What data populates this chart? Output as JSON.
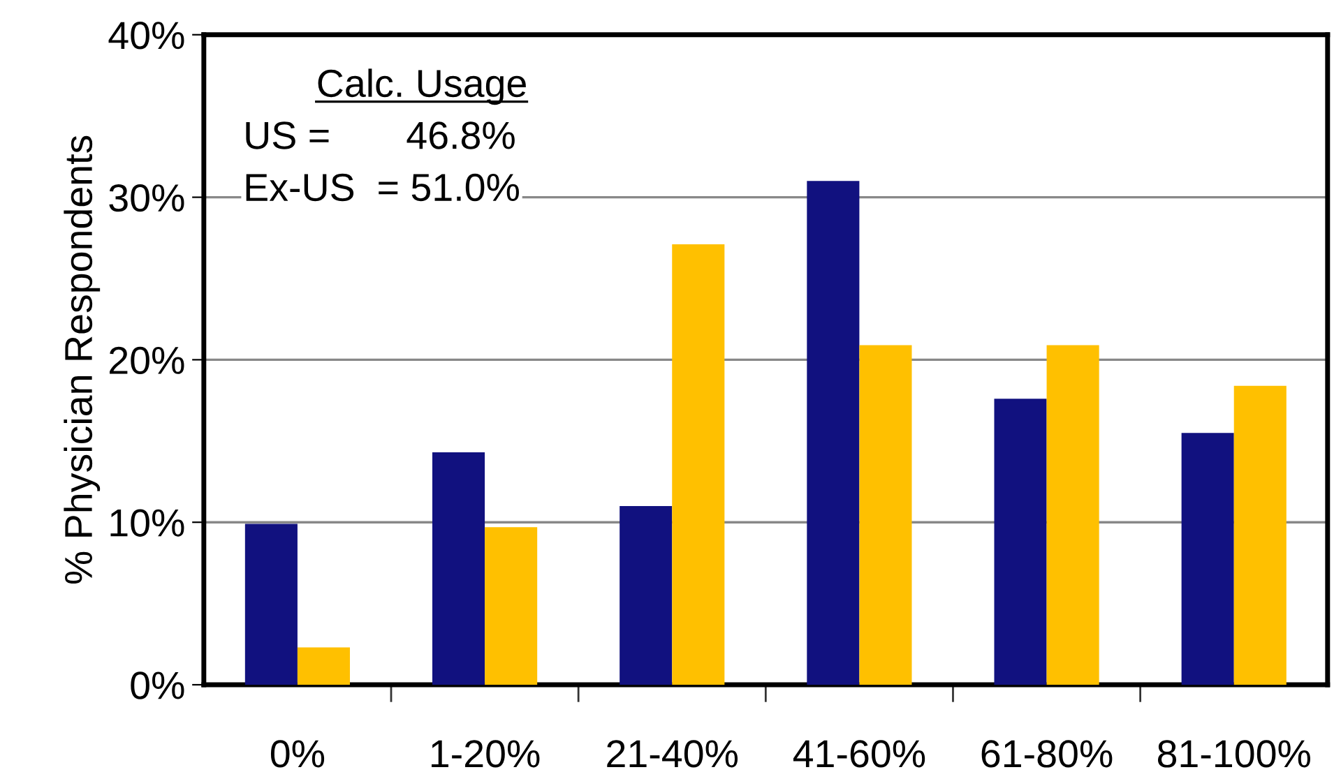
{
  "chart_data": {
    "type": "bar",
    "ylabel": "% Physician Respondents",
    "categories": [
      "0%",
      "1-20%",
      "21-40%",
      "41-60%",
      "61-80%",
      "81-100%"
    ],
    "series": [
      {
        "color": "#11117f",
        "values": [
          9.9,
          14.3,
          11.0,
          31.0,
          17.6,
          15.5
        ]
      },
      {
        "color": "#ffc000",
        "values": [
          2.3,
          9.7,
          27.1,
          20.9,
          20.9,
          18.4
        ]
      }
    ],
    "ylim": [
      0,
      40
    ],
    "yticks": [
      {
        "value": 0,
        "label": "0%"
      },
      {
        "value": 10,
        "label": "10%"
      },
      {
        "value": 20,
        "label": "20%"
      },
      {
        "value": 30,
        "label": "30%"
      },
      {
        "value": 40,
        "label": "40%"
      }
    ],
    "grid": "y",
    "legend": false,
    "annotations": [
      "Calc. Usage",
      "US =       46.8%",
      "Ex-US  = 51.0%"
    ]
  }
}
